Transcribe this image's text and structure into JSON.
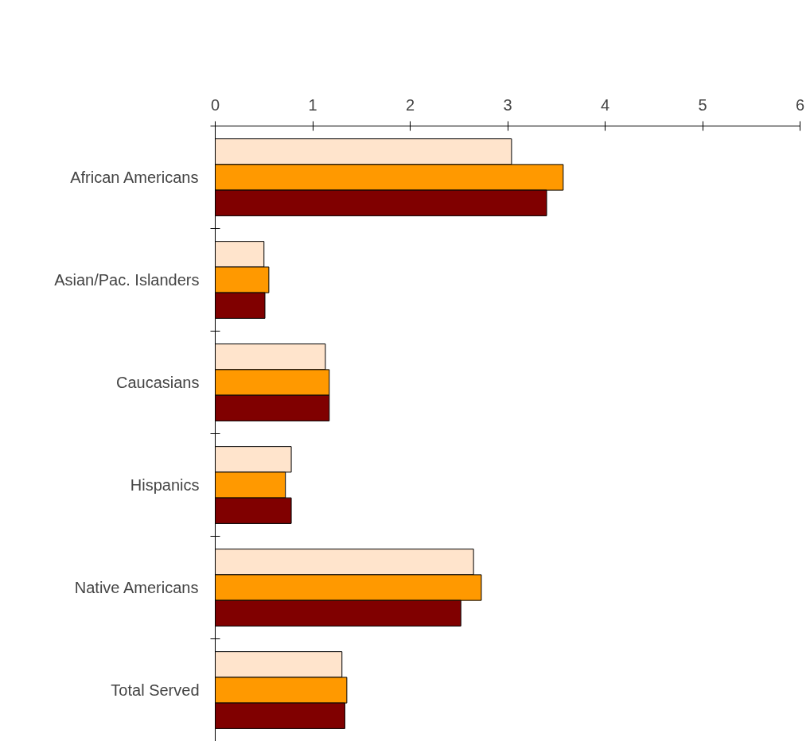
{
  "chart_data": {
    "type": "bar",
    "orientation": "horizontal",
    "categories": [
      "African Americans",
      "Asian/Pac. Islanders",
      "Caucasians",
      "Hispanics",
      "Native Americans",
      "Total Served"
    ],
    "series": [
      {
        "color": "#ffe4cc",
        "values": [
          3.04,
          0.5,
          1.13,
          0.78,
          2.65,
          1.3
        ]
      },
      {
        "color": "#ff9900",
        "values": [
          3.57,
          0.55,
          1.17,
          0.72,
          2.73,
          1.35
        ]
      },
      {
        "color": "#800000",
        "values": [
          3.4,
          0.51,
          1.17,
          0.78,
          2.52,
          1.33
        ]
      }
    ],
    "xlim": [
      0,
      6
    ],
    "xticks": [
      0,
      1,
      2,
      3,
      4,
      5,
      6
    ]
  }
}
